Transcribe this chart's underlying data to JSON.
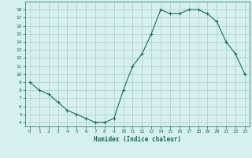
{
  "x": [
    0,
    1,
    2,
    3,
    4,
    5,
    6,
    7,
    8,
    9,
    10,
    11,
    12,
    13,
    14,
    15,
    16,
    17,
    18,
    19,
    20,
    21,
    22,
    23
  ],
  "y": [
    9,
    8,
    7.5,
    6.5,
    5.5,
    5,
    4.5,
    4,
    4,
    4.5,
    8,
    11,
    12.5,
    15,
    18,
    17.5,
    17.5,
    18,
    18,
    17.5,
    16.5,
    14,
    12.5,
    10
  ],
  "xlabel": "Humidex (Indice chaleur)",
  "ylabel": "",
  "xlim": [
    -0.5,
    23.5
  ],
  "ylim": [
    3.5,
    19.0
  ],
  "yticks": [
    4,
    5,
    6,
    7,
    8,
    9,
    10,
    11,
    12,
    13,
    14,
    15,
    16,
    17,
    18
  ],
  "xticks": [
    0,
    1,
    2,
    3,
    4,
    5,
    6,
    7,
    8,
    9,
    10,
    11,
    12,
    13,
    14,
    15,
    16,
    17,
    18,
    19,
    20,
    21,
    22,
    23
  ],
  "line_color": "#1a6b5a",
  "bg_color": "#d6f0ef",
  "grid_color": "#a8cfc9"
}
